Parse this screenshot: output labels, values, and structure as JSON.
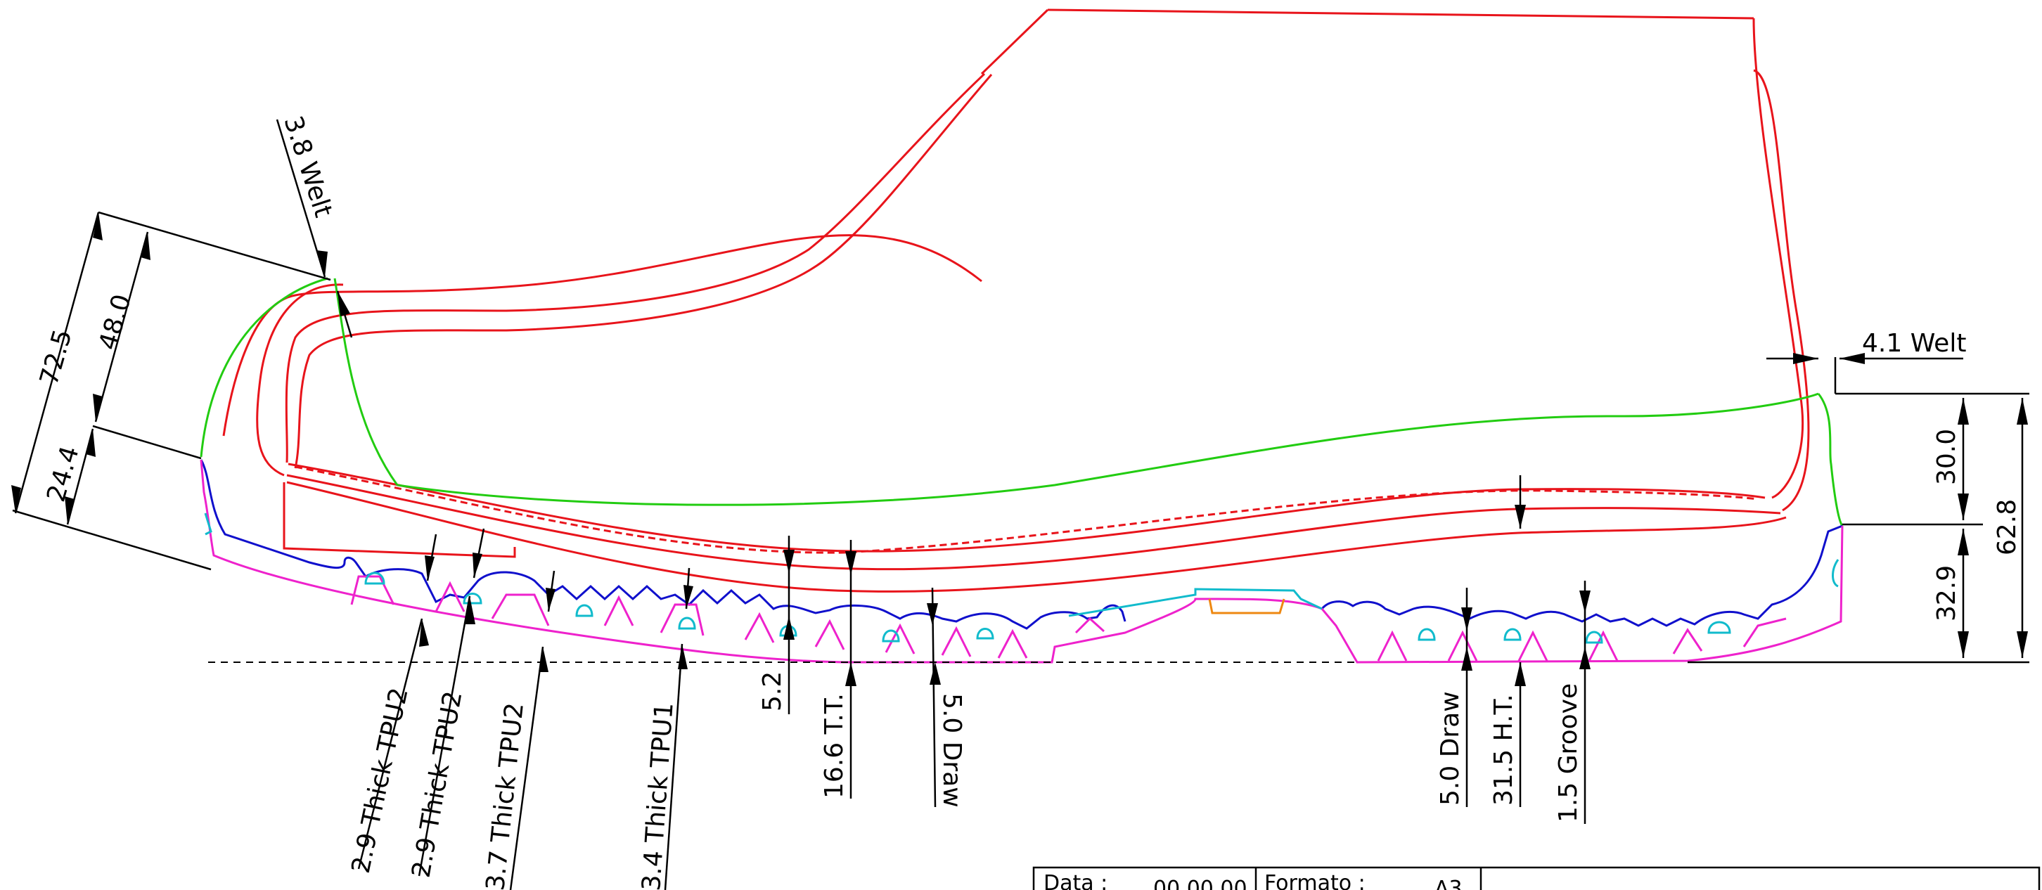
{
  "colors": {
    "upper": "#e8141b",
    "insole_line": "#22cc11",
    "outsole_top": "#1010cc",
    "outsole_bottom": "#ee22cc",
    "tpu_pod": "#11bbcc",
    "shank": "#ee8811",
    "dimension": "#000000"
  },
  "dimensions": {
    "welt_left": "3.8 Welt",
    "welt_right": "4.1 Welt",
    "toe_total": "72.5",
    "toe_upper": "48.0",
    "toe_lower": "24.4",
    "heel_total": "62.8",
    "heel_upper": "30.0",
    "heel_lower": "32.9",
    "tpu_1": "2.9 Thick TPU2",
    "tpu_2": "2.9 Thick TPU2",
    "tpu_3": "3.7 Thick TPU2",
    "tpu_4": "3.4 Thick TPU1",
    "toe_gap": "5.2",
    "toe_thickness": "16.6 T.T.",
    "draw_front": "5.0 Draw",
    "draw_rear": "5.0 Draw",
    "heel_thickness": "31.5 H.T.",
    "groove": "1.5 Groove"
  },
  "title_block": {
    "date_label": "Data :",
    "date_value": "00.00.00",
    "format_label": "Formato :",
    "format_value": "A3"
  }
}
